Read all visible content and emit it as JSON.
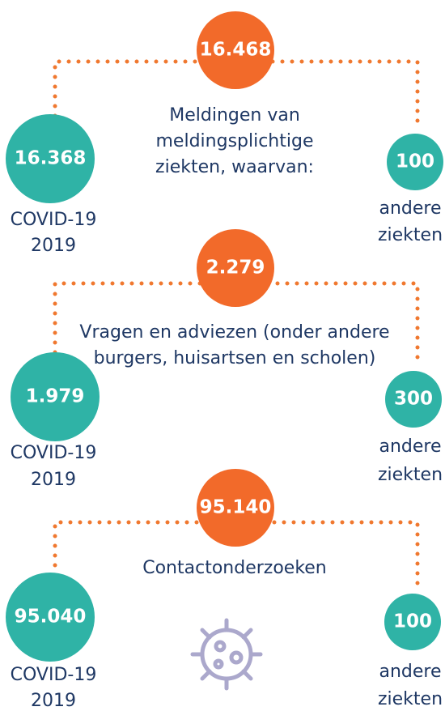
{
  "sections": [
    {
      "total": "16.468",
      "description": [
        "Meldingen van",
        "meldingsplichtige",
        "ziekten, waarvan:"
      ],
      "left": {
        "value": "16.368",
        "label": [
          "COVID-19",
          "2019"
        ]
      },
      "right": {
        "value": "100",
        "label": [
          "andere",
          "ziekten"
        ]
      }
    },
    {
      "total": "2.279",
      "description": [
        "Vragen en adviezen (onder andere",
        "burgers, huisartsen en scholen)"
      ],
      "left": {
        "value": "1.979",
        "label": [
          "COVID-19",
          "2019"
        ]
      },
      "right": {
        "value": "300",
        "label": [
          "andere",
          "ziekten"
        ]
      }
    },
    {
      "total": "95.140",
      "description": [
        "Contactonderzoeken"
      ],
      "left": {
        "value": "95.040",
        "label": [
          "COVID-19",
          "2019"
        ]
      },
      "right": {
        "value": "100",
        "label": [
          "andere",
          "ziekten"
        ]
      }
    }
  ]
}
